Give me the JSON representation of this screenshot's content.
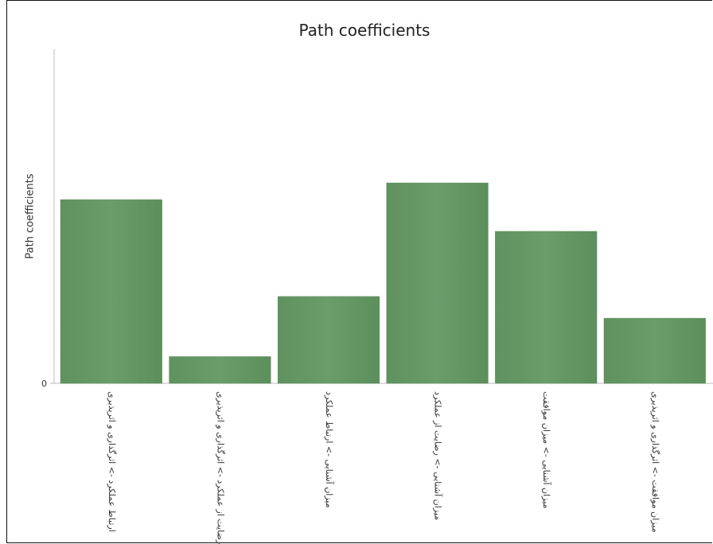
{
  "chart_data": {
    "type": "bar",
    "title": "Path coefficients",
    "xlabel": "",
    "ylabel": "Path coefficients",
    "categories": [
      "ارتباط عملکرد -> اثرگذاری و اثرپذیری",
      "رضایت از عملکرد -> اثرگذاری و اثرپذیری",
      "میزان آشنایی -> ارتباط عملکرد",
      "میزان آشنایی -> رضایت از عملکرد",
      "میزان آشنایی -> میزان موافقت",
      "میزان موافقت -> اثرگذاری و اثرپذیری"
    ],
    "values": [
      0.55,
      0.08,
      0.26,
      0.6,
      0.455,
      0.195
    ],
    "ylim": [
      0,
      1.0
    ],
    "yticks": [
      "0"
    ],
    "grid": false,
    "legend": "none",
    "colors": {
      "bar": "#669966",
      "bar_edge": "#5a8c5a",
      "axis": "#bbbbbb"
    }
  }
}
